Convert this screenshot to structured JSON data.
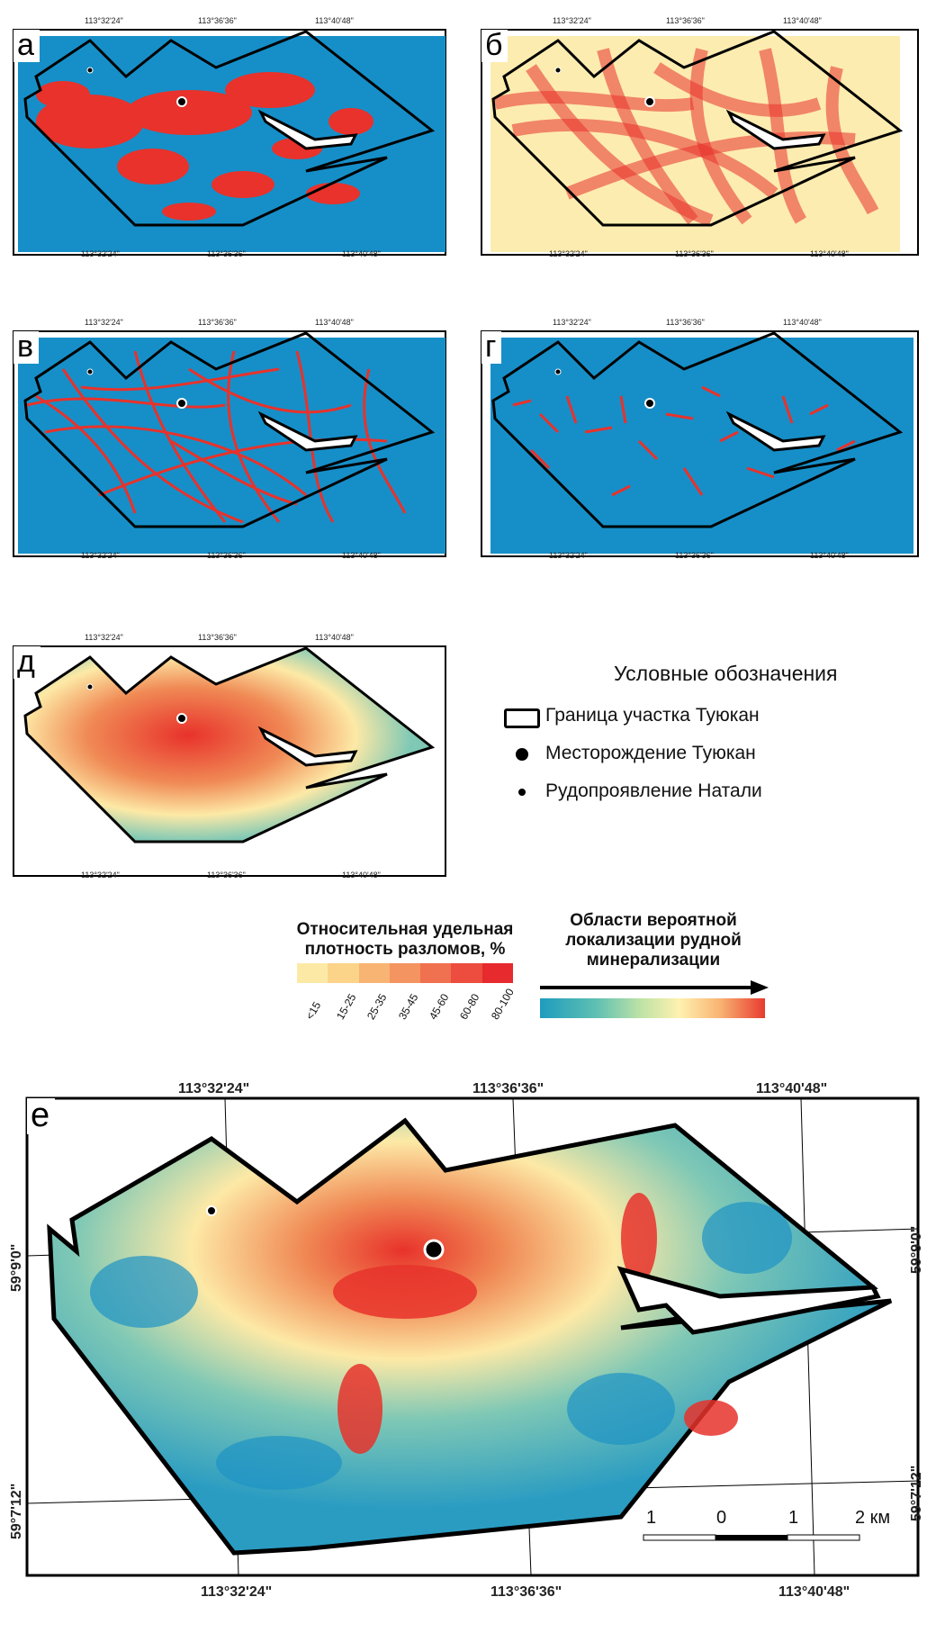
{
  "panels": {
    "a": {
      "label": "а"
    },
    "b": {
      "label": "б"
    },
    "v": {
      "label": "в"
    },
    "g": {
      "label": "г"
    },
    "d": {
      "label": "д"
    },
    "e": {
      "label": "е"
    }
  },
  "coords": {
    "lon1": "113°32'24\"",
    "lon2": "113°36'36\"",
    "lon3": "113°40'48\"",
    "lat1": "59°9'0\"",
    "lat2": "59°7'12\""
  },
  "legend": {
    "title": "Условные обозначения",
    "boundary": "Граница участка Туюкан",
    "deposit": "Месторождение Туюкан",
    "occurrence": "Рудопроявление Натали"
  },
  "scale_density": {
    "title": "Относительная удельная плотность разломов, %",
    "line1": "Относительная удельная",
    "line2": "плотность разломов, %",
    "ticks": [
      "<15",
      "15-25",
      "25-35",
      "35-45",
      "45-60",
      "60-80",
      "80-100"
    ],
    "colors": [
      "#fde9a6",
      "#fbd389",
      "#f8b472",
      "#f49461",
      "#f0714f",
      "#ec4d3f",
      "#e62a2e"
    ]
  },
  "scale_prob": {
    "line1": "Области вероятной",
    "line2": "локализации рудной",
    "line3": "минерализации",
    "colors": [
      "#1e9cbf",
      "#5fc0b2",
      "#bfe3a6",
      "#fff1b0",
      "#f8b472",
      "#e83a30"
    ]
  },
  "scalebar": {
    "labels": [
      "1",
      "0",
      "1",
      "2 км"
    ]
  },
  "colors": {
    "water_blue": "#168fc8",
    "fault_red": "#e8322b",
    "pale_yellow": "#fdecb0"
  }
}
